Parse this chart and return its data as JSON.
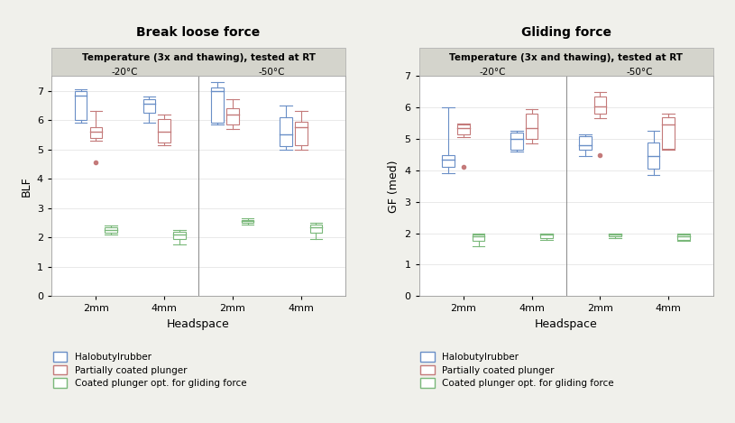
{
  "blf_title": "Break loose force",
  "gf_title": "Gliding force",
  "subtitle": "Temperature (3x and thawing), tested at RT",
  "temp_labels": [
    "-20°C",
    "-50°C"
  ],
  "x_labels": [
    "2mm",
    "4mm",
    "2mm",
    "4mm"
  ],
  "x_label": "Headspace",
  "blf_ylabel": "BLF",
  "gf_ylabel": "GF (med)",
  "legend_labels": [
    "Halobutylrubber",
    "Partially coated plunger",
    "Coated plunger opt. for gliding force"
  ],
  "colors": [
    "#6a8fc7",
    "#c47a7a",
    "#7ab87a"
  ],
  "ylim_blf": [
    0,
    7.5
  ],
  "ylim_gf": [
    0,
    7
  ],
  "yticks_blf": [
    0,
    1,
    2,
    3,
    4,
    5,
    6,
    7
  ],
  "yticks_gf": [
    0,
    1,
    2,
    3,
    4,
    5,
    6,
    7
  ],
  "blf_boxes": {
    "halo": [
      {
        "whislo": 5.9,
        "q1": 6.0,
        "med": 6.85,
        "q3": 7.0,
        "whishi": 7.05,
        "fliers": []
      },
      {
        "whislo": 5.9,
        "q1": 6.25,
        "med": 6.55,
        "q3": 6.7,
        "whishi": 6.8,
        "fliers": []
      },
      {
        "whislo": 5.85,
        "q1": 5.9,
        "med": 7.0,
        "q3": 7.1,
        "whishi": 7.3,
        "fliers": []
      },
      {
        "whislo": 5.0,
        "q1": 5.1,
        "med": 5.5,
        "q3": 6.1,
        "whishi": 6.5,
        "fliers": []
      }
    ],
    "partial": [
      {
        "whislo": 5.3,
        "q1": 5.4,
        "med": 5.6,
        "q3": 5.75,
        "whishi": 6.3,
        "fliers": [
          4.55
        ]
      },
      {
        "whislo": 5.15,
        "q1": 5.25,
        "med": 5.6,
        "q3": 6.05,
        "whishi": 6.2,
        "fliers": []
      },
      {
        "whislo": 5.7,
        "q1": 5.85,
        "med": 6.2,
        "q3": 6.4,
        "whishi": 6.7,
        "fliers": []
      },
      {
        "whislo": 5.0,
        "q1": 5.15,
        "med": 5.75,
        "q3": 5.95,
        "whishi": 6.3,
        "fliers": []
      }
    ],
    "coated": [
      {
        "whislo": 2.1,
        "q1": 2.15,
        "med": 2.25,
        "q3": 2.35,
        "whishi": 2.4,
        "fliers": []
      },
      {
        "whislo": 1.75,
        "q1": 1.95,
        "med": 2.1,
        "q3": 2.2,
        "whishi": 2.25,
        "fliers": []
      },
      {
        "whislo": 2.45,
        "q1": 2.5,
        "med": 2.55,
        "q3": 2.6,
        "whishi": 2.65,
        "fliers": []
      },
      {
        "whislo": 1.95,
        "q1": 2.15,
        "med": 2.35,
        "q3": 2.45,
        "whishi": 2.5,
        "fliers": []
      }
    ]
  },
  "gf_boxes": {
    "halo": [
      {
        "whislo": 3.9,
        "q1": 4.1,
        "med": 4.35,
        "q3": 4.5,
        "whishi": 6.0,
        "fliers": []
      },
      {
        "whislo": 4.6,
        "q1": 4.65,
        "med": 5.0,
        "q3": 5.2,
        "whishi": 5.25,
        "fliers": []
      },
      {
        "whislo": 4.45,
        "q1": 4.65,
        "med": 4.8,
        "q3": 5.1,
        "whishi": 5.15,
        "fliers": []
      },
      {
        "whislo": 3.85,
        "q1": 4.05,
        "med": 4.45,
        "q3": 4.9,
        "whishi": 5.25,
        "fliers": []
      }
    ],
    "partial": [
      {
        "whislo": 5.05,
        "q1": 5.15,
        "med": 5.35,
        "q3": 5.45,
        "whishi": 5.5,
        "fliers": [
          4.1
        ]
      },
      {
        "whislo": 4.85,
        "q1": 5.0,
        "med": 5.35,
        "q3": 5.8,
        "whishi": 5.95,
        "fliers": []
      },
      {
        "whislo": 5.65,
        "q1": 5.8,
        "med": 6.05,
        "q3": 6.35,
        "whishi": 6.5,
        "fliers": [
          4.5
        ]
      },
      {
        "whislo": 4.65,
        "q1": 4.7,
        "med": 5.45,
        "q3": 5.7,
        "whishi": 5.8,
        "fliers": []
      }
    ],
    "coated": [
      {
        "whislo": 1.6,
        "q1": 1.75,
        "med": 1.9,
        "q3": 1.95,
        "whishi": 2.0,
        "fliers": []
      },
      {
        "whislo": 1.8,
        "q1": 1.85,
        "med": 1.95,
        "q3": 2.0,
        "whishi": 2.0,
        "fliers": []
      },
      {
        "whislo": 1.85,
        "q1": 1.9,
        "med": 1.95,
        "q3": 2.0,
        "whishi": 2.0,
        "fliers": []
      },
      {
        "whislo": 1.75,
        "q1": 1.8,
        "med": 1.9,
        "q3": 1.95,
        "whishi": 2.0,
        "fliers": []
      }
    ]
  },
  "background_color": "#f0f0eb",
  "plot_bg_color": "#ffffff",
  "header_bg_color": "#d4d4cc",
  "box_width": 0.18,
  "offsets": [
    -0.22,
    0.0,
    0.22
  ]
}
